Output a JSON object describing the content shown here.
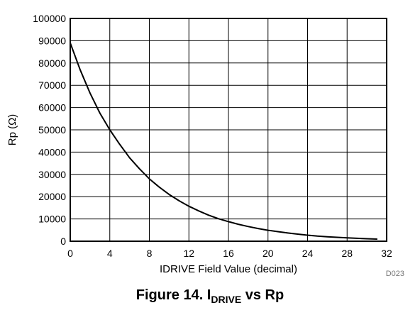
{
  "chart_data": {
    "type": "line",
    "xlabel": "IDRIVE Field Value (decimal)",
    "ylabel": "Rp (Ω)",
    "xlim": [
      0,
      32
    ],
    "ylim": [
      0,
      100000
    ],
    "x_ticks": [
      "0",
      "4",
      "8",
      "12",
      "16",
      "20",
      "24",
      "28",
      "32"
    ],
    "y_ticks": [
      "0",
      "10000",
      "20000",
      "30000",
      "40000",
      "50000",
      "60000",
      "70000",
      "80000",
      "90000",
      "100000"
    ],
    "grid": true,
    "series": [
      {
        "color": "#000000",
        "x": [
          0,
          1,
          2,
          3,
          4,
          5,
          6,
          7,
          8,
          9,
          10,
          11,
          12,
          13,
          14,
          15,
          16,
          17,
          18,
          19,
          20,
          21,
          22,
          23,
          24,
          25,
          26,
          27,
          28,
          29,
          30,
          31
        ],
        "y": [
          89000,
          77000,
          66500,
          57500,
          50000,
          43500,
          37500,
          32500,
          28000,
          24300,
          21000,
          18200,
          15700,
          13600,
          11700,
          10100,
          8800,
          7600,
          6600,
          5700,
          4900,
          4300,
          3700,
          3200,
          2700,
          2300,
          2000,
          1750,
          1500,
          1300,
          1100,
          950
        ]
      }
    ],
    "figure_code": "D023"
  },
  "caption": {
    "prefix": "Figure 14.  I",
    "subscript": "DRIVE",
    "suffix": " vs Rp"
  }
}
